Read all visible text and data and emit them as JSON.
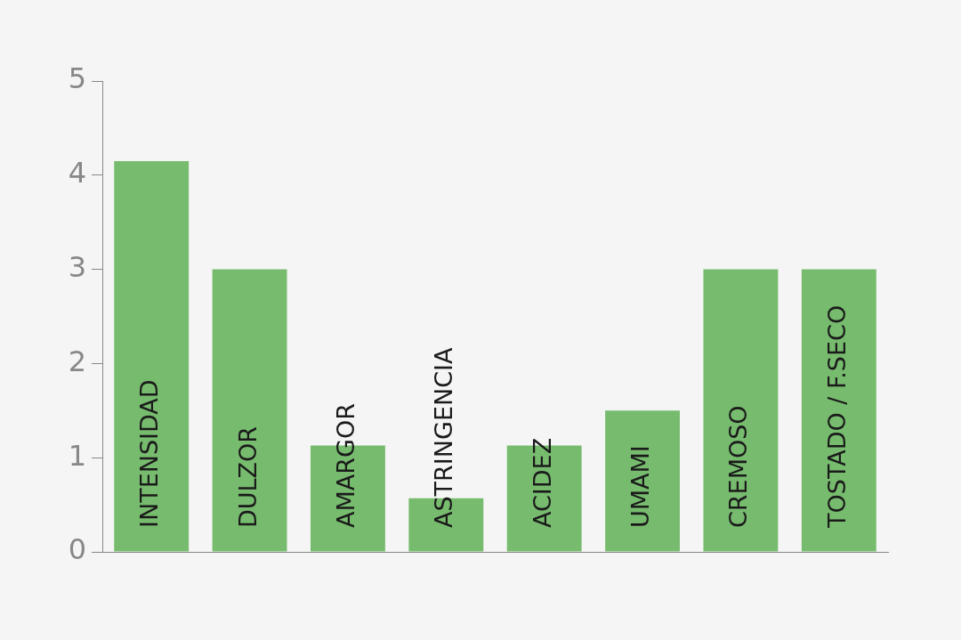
{
  "chart_data": {
    "type": "bar",
    "categories": [
      "INTENSIDAD",
      "DULZOR",
      "AMARGOR",
      "ASTRINGENCIA",
      "ACIDEZ",
      "UMAMI",
      "CREMOSO",
      "TOSTADO / F.SECO"
    ],
    "values": [
      4.15,
      3,
      1.13,
      0.57,
      1.13,
      1.5,
      3,
      3
    ],
    "color": "#77bc6e",
    "ylim": [
      0,
      5
    ],
    "yticks": [
      0,
      1,
      2,
      3,
      4,
      5
    ],
    "grid": false
  }
}
